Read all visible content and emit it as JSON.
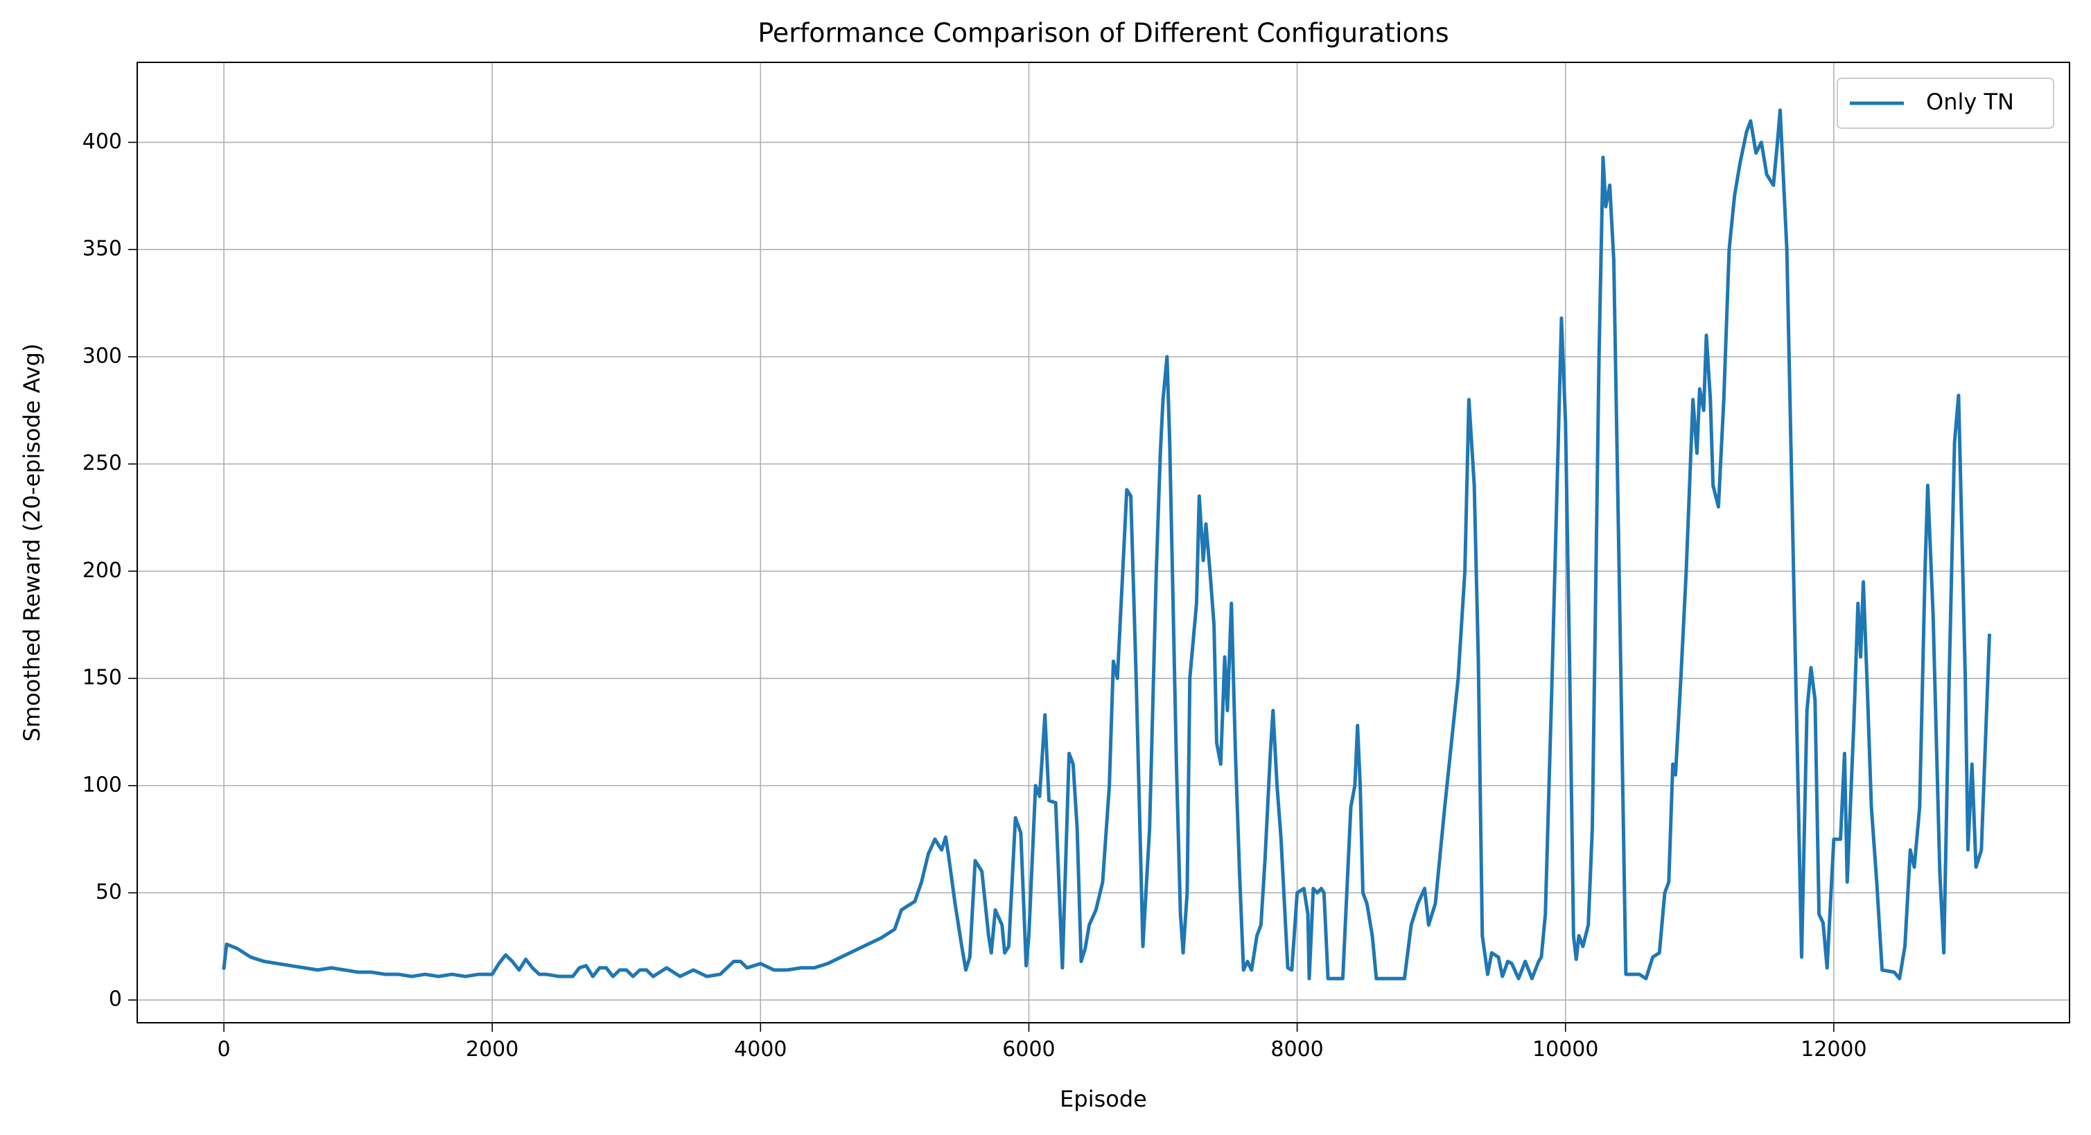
{
  "chart_data": {
    "type": "line",
    "title": "Performance Comparison of Different Configurations",
    "xlabel": "Episode",
    "ylabel": "Smoothed Reward (20-episode Avg)",
    "xlim": [
      -646,
      13757
    ],
    "ylim": [
      -10.6,
      437.3
    ],
    "xticks": [
      0,
      2000,
      4000,
      6000,
      8000,
      10000,
      12000
    ],
    "yticks": [
      0,
      50,
      100,
      150,
      200,
      250,
      300,
      350,
      400
    ],
    "grid": true,
    "legend": "upper right",
    "x": [
      0,
      20,
      100,
      200,
      300,
      400,
      500,
      600,
      700,
      800,
      900,
      1000,
      1100,
      1200,
      1300,
      1400,
      1500,
      1600,
      1700,
      1800,
      1900,
      2000,
      2050,
      2100,
      2150,
      2200,
      2250,
      2300,
      2350,
      2400,
      2500,
      2600,
      2650,
      2700,
      2750,
      2800,
      2850,
      2900,
      2950,
      3000,
      3050,
      3100,
      3150,
      3200,
      3300,
      3400,
      3500,
      3600,
      3700,
      3800,
      3850,
      3900,
      4000,
      4100,
      4200,
      4300,
      4400,
      4500,
      4600,
      4700,
      4800,
      4900,
      5000,
      5050,
      5100,
      5150,
      5200,
      5250,
      5300,
      5350,
      5380,
      5400,
      5450,
      5500,
      5530,
      5560,
      5600,
      5650,
      5700,
      5720,
      5750,
      5800,
      5820,
      5850,
      5900,
      5940,
      5980,
      6000,
      6050,
      6080,
      6120,
      6150,
      6200,
      6250,
      6300,
      6330,
      6360,
      6390,
      6420,
      6450,
      6500,
      6550,
      6600,
      6630,
      6660,
      6700,
      6730,
      6760,
      6800,
      6850,
      6900,
      6950,
      6980,
      7000,
      7030,
      7050,
      7080,
      7100,
      7130,
      7150,
      7180,
      7200,
      7250,
      7270,
      7300,
      7320,
      7350,
      7380,
      7400,
      7430,
      7460,
      7480,
      7510,
      7540,
      7570,
      7600,
      7630,
      7660,
      7700,
      7730,
      7760,
      7800,
      7820,
      7850,
      7880,
      7930,
      7960,
      8000,
      8050,
      8080,
      8090,
      8120,
      8150,
      8180,
      8200,
      8230,
      8300,
      8340,
      8400,
      8430,
      8450,
      8470,
      8490,
      8520,
      8560,
      8590,
      8650,
      8750,
      8800,
      8850,
      8900,
      8950,
      8980,
      9030,
      9100,
      9150,
      9200,
      9250,
      9280,
      9320,
      9350,
      9380,
      9420,
      9450,
      9500,
      9530,
      9570,
      9600,
      9650,
      9700,
      9750,
      9800,
      9820,
      9850,
      9900,
      9950,
      9970,
      10000,
      10030,
      10060,
      10080,
      10100,
      10130,
      10170,
      10200,
      10250,
      10280,
      10300,
      10330,
      10360,
      10400,
      10450,
      10500,
      10550,
      10600,
      10650,
      10700,
      10740,
      10770,
      10800,
      10820,
      10860,
      10900,
      10950,
      10980,
      11000,
      11030,
      11050,
      11080,
      11100,
      11140,
      11180,
      11220,
      11260,
      11300,
      11350,
      11380,
      11420,
      11460,
      11500,
      11550,
      11580,
      11600,
      11650,
      11700,
      11760,
      11800,
      11830,
      11860,
      11890,
      11920,
      11950,
      12000,
      12050,
      12080,
      12100,
      12150,
      12180,
      12200,
      12220,
      12250,
      12280,
      12320,
      12360,
      12450,
      12490,
      12530,
      12570,
      12600,
      12640,
      12680,
      12700,
      12740,
      12790,
      12820,
      12860,
      12900,
      12930,
      12950,
      12980,
      13000,
      13030,
      13060,
      13100,
      13130,
      13160
    ],
    "series": [
      {
        "name": "Only TN",
        "color": "#1f77b4",
        "values": [
          15,
          26,
          24,
          20,
          18,
          17,
          16,
          15,
          14,
          15,
          14,
          13,
          13,
          12,
          12,
          11,
          12,
          11,
          12,
          11,
          12,
          12,
          17,
          21,
          18,
          14,
          19,
          15,
          12,
          12,
          11,
          11,
          15,
          16,
          11,
          15,
          15,
          11,
          14,
          14,
          11,
          14,
          14,
          11,
          15,
          11,
          14,
          11,
          12,
          18,
          18,
          15,
          17,
          14,
          14,
          15,
          15,
          17,
          20,
          23,
          26,
          29,
          33,
          42,
          44,
          46,
          55,
          68,
          75,
          70,
          76,
          68,
          45,
          25,
          14,
          20,
          65,
          60,
          30,
          22,
          42,
          35,
          22,
          25,
          85,
          78,
          16,
          30,
          100,
          95,
          133,
          93,
          92,
          15,
          115,
          110,
          80,
          18,
          24,
          35,
          42,
          55,
          100,
          158,
          150,
          200,
          238,
          235,
          150,
          25,
          80,
          200,
          255,
          280,
          300,
          260,
          170,
          110,
          40,
          22,
          50,
          150,
          185,
          235,
          205,
          222,
          200,
          175,
          120,
          110,
          160,
          135,
          185,
          115,
          60,
          14,
          18,
          14,
          30,
          35,
          65,
          115,
          135,
          100,
          75,
          15,
          14,
          50,
          52,
          40,
          10,
          52,
          50,
          52,
          50,
          10,
          10,
          10,
          90,
          100,
          128,
          100,
          50,
          45,
          30,
          10,
          10,
          10,
          10,
          35,
          45,
          52,
          35,
          45,
          90,
          120,
          150,
          200,
          280,
          240,
          160,
          30,
          12,
          22,
          20,
          11,
          18,
          17,
          10,
          18,
          10,
          18,
          20,
          40,
          150,
          270,
          318,
          270,
          160,
          30,
          19,
          30,
          25,
          35,
          80,
          300,
          393,
          370,
          380,
          345,
          200,
          12,
          12,
          12,
          10,
          20,
          22,
          50,
          55,
          110,
          105,
          150,
          200,
          280,
          255,
          285,
          275,
          310,
          280,
          240,
          230,
          280,
          350,
          375,
          390,
          405,
          410,
          395,
          400,
          385,
          380,
          400,
          415,
          350,
          200,
          20,
          135,
          155,
          140,
          40,
          36,
          15,
          75,
          75,
          115,
          55,
          130,
          185,
          160,
          195,
          145,
          90,
          55,
          14,
          13,
          10,
          25,
          70,
          62,
          90,
          200,
          240,
          180,
          60,
          22,
          150,
          260,
          282,
          230,
          150,
          70,
          110,
          62,
          70,
          120,
          170
        ]
      }
    ]
  }
}
